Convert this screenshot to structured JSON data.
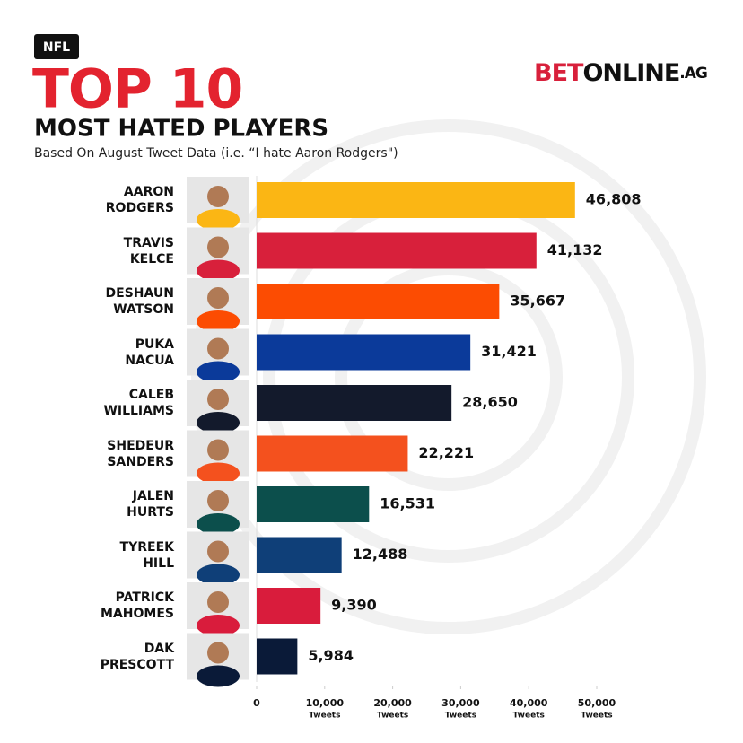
{
  "badge": "NFL",
  "logo": {
    "bet": "BET",
    "online": "ONLINE",
    "ag": ".AG"
  },
  "chart_data": {
    "type": "hbar",
    "title": "TOP 10",
    "subtitle": "MOST HATED PLAYERS",
    "note": "Based On August Tweet Data (i.e. “I hate Aaron Rodgers\")",
    "categories": [
      "AARON\nRODGERS",
      "TRAVIS\nKELCE",
      "DESHAUN\nWATSON",
      "PUKA\nNACUA",
      "CALEB\nWILLIAMS",
      "SHEDEUR\nSANDERS",
      "JALEN\nHURTS",
      "TYREEK\nHILL",
      "PATRICK\nMAHOMES",
      "DAK\nPRESCOTT"
    ],
    "values": [
      46808,
      41132,
      35667,
      31421,
      28650,
      22221,
      16531,
      12488,
      9390,
      5984
    ],
    "value_labels": [
      "46,808",
      "41,132",
      "35,667",
      "31,421",
      "28,650",
      "22,221",
      "16,531",
      "12,488",
      "9,390",
      "5,984"
    ],
    "colors": [
      "#fbb614",
      "#d8203b",
      "#fc4c02",
      "#0b3a9a",
      "#131a2c",
      "#f4511e",
      "#0c4f4c",
      "#0f3f78",
      "#d91c3c",
      "#0a1a38"
    ],
    "xlim": [
      0,
      50000
    ],
    "xticks": [
      0,
      {
        "value": 10000,
        "label": "10,000"
      },
      {
        "value": 20000,
        "label": "20,000"
      },
      {
        "value": 30000,
        "label": "30,000"
      },
      {
        "value": 40000,
        "label": "40,000"
      },
      {
        "value": 50000,
        "label": "50,000"
      }
    ],
    "xunit": "Tweets"
  }
}
